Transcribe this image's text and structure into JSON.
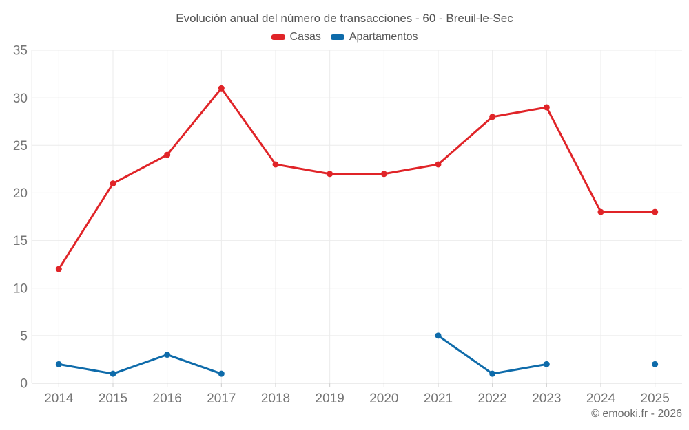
{
  "chart_data": {
    "type": "line",
    "title": "Evolución anual del número de transacciones - 60 - Breuil-le-Sec",
    "categories": [
      "2014",
      "2015",
      "2016",
      "2017",
      "2018",
      "2019",
      "2020",
      "2021",
      "2022",
      "2023",
      "2024",
      "2025"
    ],
    "series": [
      {
        "name": "Casas",
        "color": "#e02428",
        "values": [
          12,
          21,
          24,
          31,
          23,
          22,
          22,
          23,
          28,
          29,
          18,
          18
        ]
      },
      {
        "name": "Apartamentos",
        "color": "#0e6baa",
        "values": [
          2,
          1,
          3,
          1,
          null,
          null,
          null,
          5,
          1,
          2,
          null,
          2
        ]
      }
    ],
    "ylim": [
      0,
      35
    ],
    "ytick_step": 5,
    "yticks": [
      0,
      5,
      10,
      15,
      20,
      25,
      30,
      35
    ],
    "grid": true,
    "legend_position": "top",
    "connect_gaps": false
  },
  "footer": {
    "copyright": "© emooki.fr - 2026"
  },
  "colors": {
    "grid": "#ebebeb",
    "axis_line": "#d8d8d8",
    "tick_mark": "#cccccc",
    "tick_text": "#757575",
    "title_text": "#545454",
    "legend_text": "#565656",
    "footer_text": "#6d6d6d",
    "background": "#ffffff"
  }
}
